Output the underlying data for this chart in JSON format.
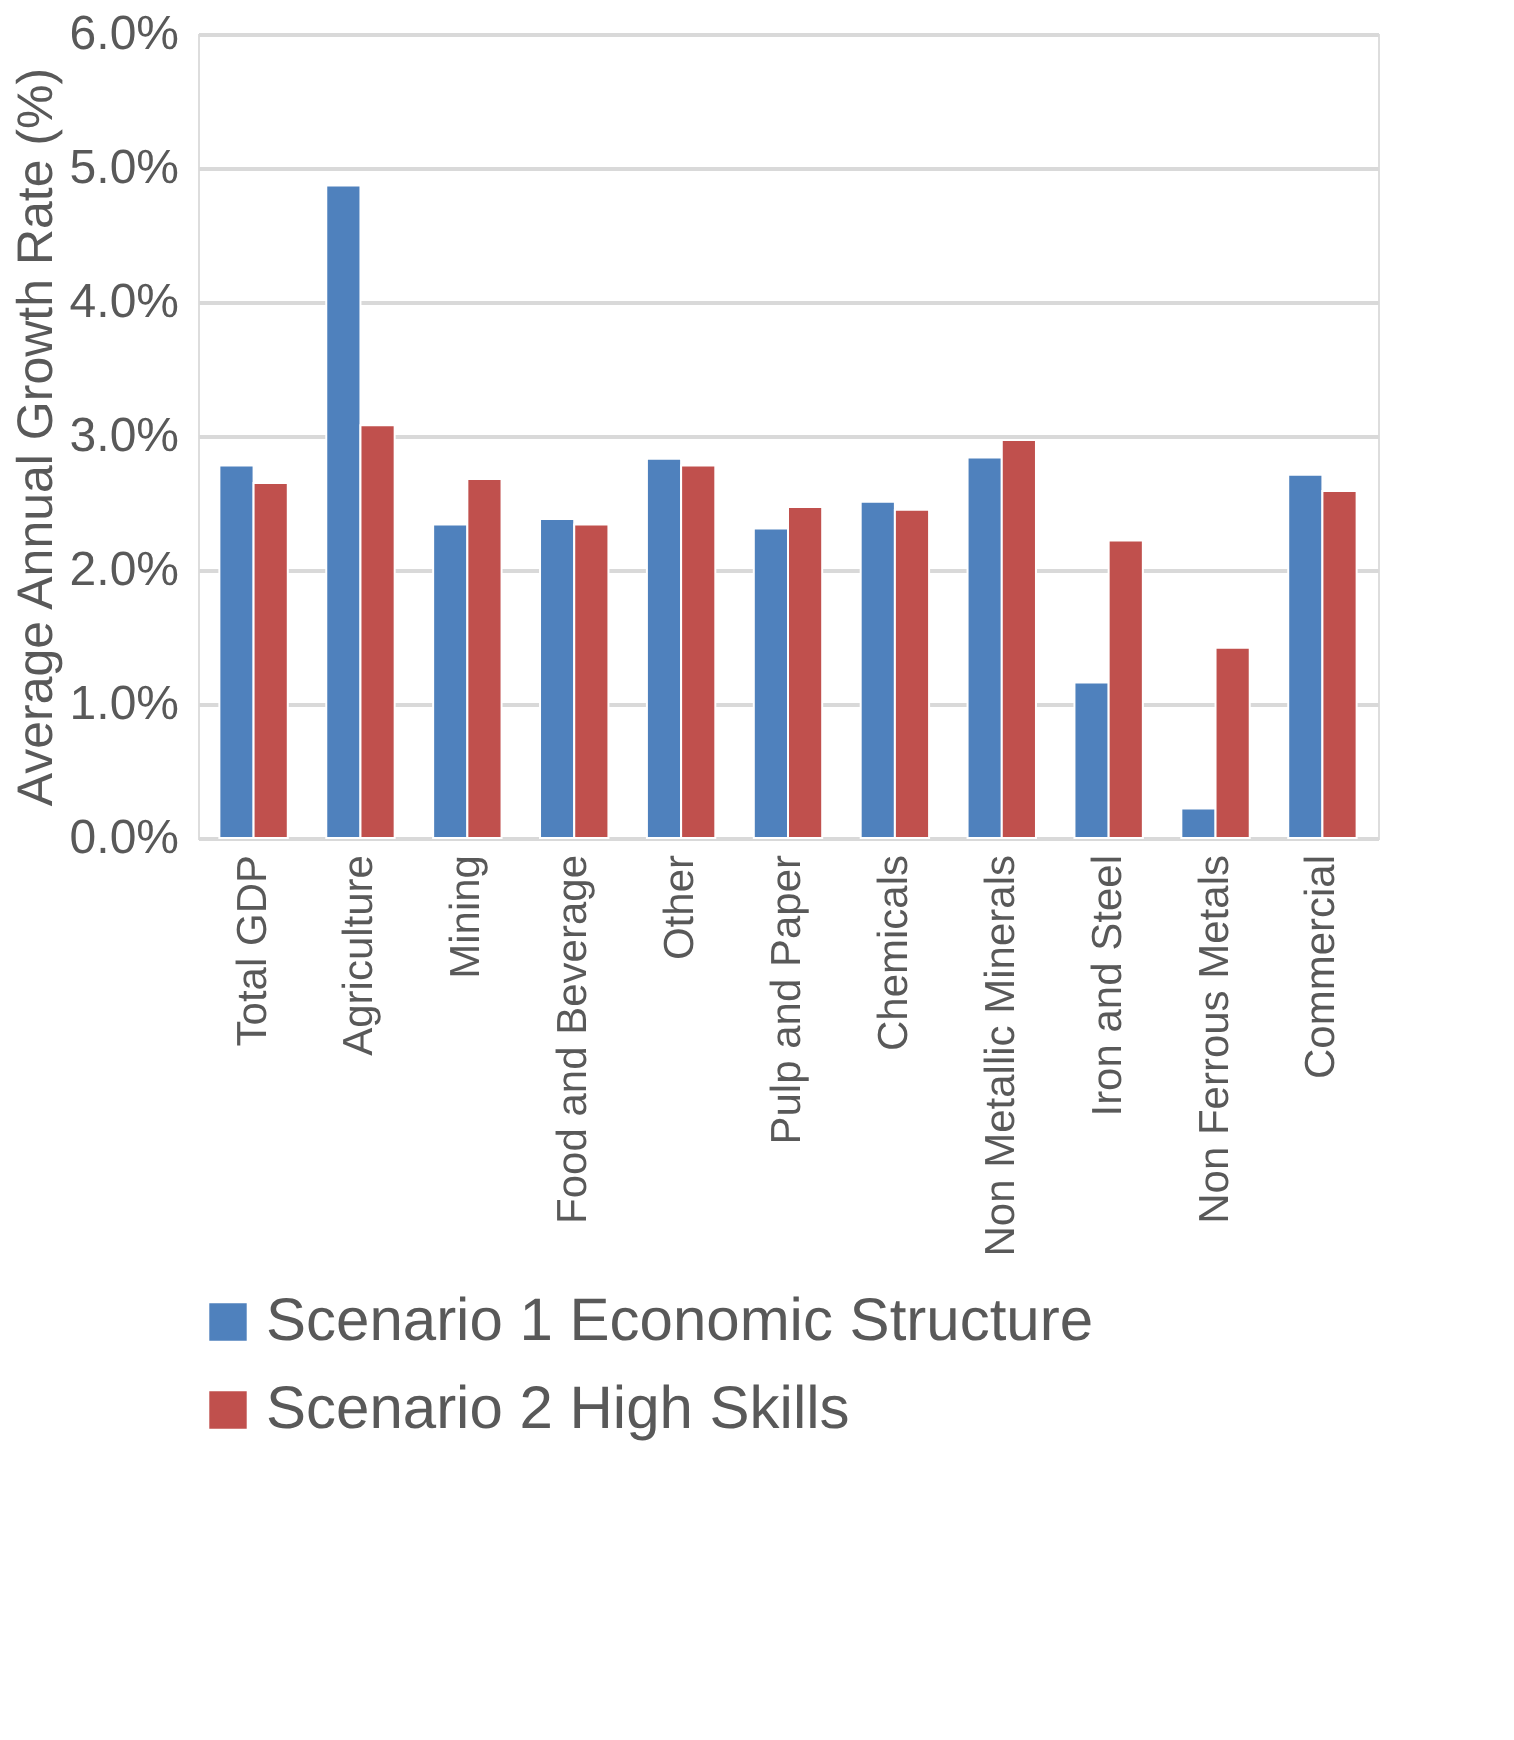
{
  "chart_data": {
    "type": "bar",
    "ylabel": "Average Annual Growth Rate (%)",
    "categories": [
      "Total GDP",
      "Agriculture",
      "Mining",
      "Food and Beverage",
      "Other",
      "Pulp and Paper",
      "Chemicals",
      "Non Metallic Minerals",
      "Iron and Steel",
      "Non Ferrous Metals",
      "Commercial"
    ],
    "series": [
      {
        "name": "Scenario 1 Economic Structure",
        "color": "#4f81bd",
        "values": [
          2.78,
          4.87,
          2.34,
          2.38,
          2.83,
          2.31,
          2.51,
          2.84,
          1.16,
          0.22,
          2.71
        ]
      },
      {
        "name": "Scenario 2 High Skills",
        "color": "#c0504d",
        "values": [
          2.65,
          3.08,
          2.68,
          2.34,
          2.78,
          2.47,
          2.45,
          2.97,
          2.22,
          1.42,
          2.59
        ]
      }
    ],
    "ylim": [
      0,
      6
    ],
    "yticks": [
      {
        "value": 0,
        "label": "0.0%"
      },
      {
        "value": 1,
        "label": "1.0%"
      },
      {
        "value": 2,
        "label": "2.0%"
      },
      {
        "value": 3,
        "label": "3.0%"
      },
      {
        "value": 4,
        "label": "4.0%"
      },
      {
        "value": 5,
        "label": "5.0%"
      },
      {
        "value": 6,
        "label": "6.0%"
      }
    ],
    "grid": "y",
    "legend": "bottom"
  }
}
